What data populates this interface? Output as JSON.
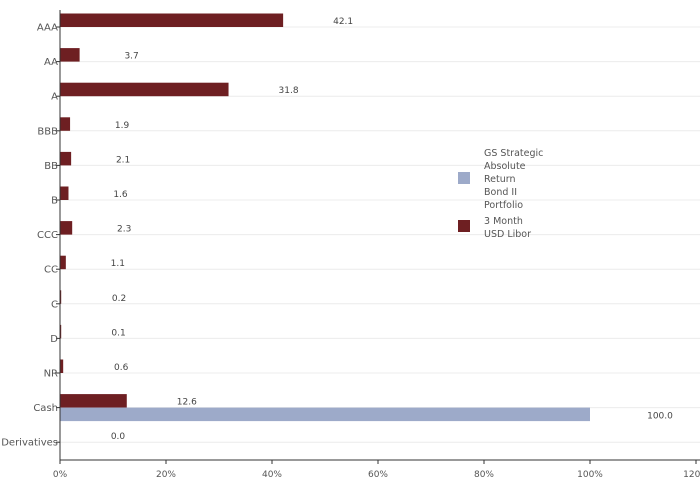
{
  "chart_data": {
    "type": "bar",
    "orientation": "horizontal",
    "categories": [
      "AAA",
      "AA",
      "A",
      "BBB",
      "BB",
      "B",
      "CCC",
      "CC",
      "C",
      "D",
      "NR",
      "Cash",
      "Derivatives"
    ],
    "series": [
      {
        "name": "GS Strategic Absolute Return Bond II Portfolio",
        "legend_lines": [
          "GS Strategic",
          "Absolute",
          "Return",
          "Bond II",
          "Portfolio"
        ],
        "color": "#9daac9",
        "values": [
          null,
          null,
          null,
          null,
          null,
          null,
          null,
          null,
          null,
          null,
          null,
          100.0,
          null
        ],
        "labels": [
          "",
          "",
          "",
          "",
          "",
          "",
          "",
          "",
          "",
          "",
          "",
          "100.0",
          ""
        ]
      },
      {
        "name": "3 Month USD Libor",
        "legend_lines": [
          "3 Month",
          "USD Libor"
        ],
        "color": "#6e1f22",
        "values": [
          42.1,
          3.7,
          31.8,
          1.9,
          2.1,
          1.6,
          2.3,
          1.1,
          0.2,
          0.1,
          0.6,
          12.6,
          0.0
        ],
        "labels": [
          "42.1",
          "3.7",
          "31.8",
          "1.9",
          "2.1",
          "1.6",
          "2.3",
          "1.1",
          "0.2",
          "0.1",
          "0.6",
          "12.6",
          "0.0"
        ]
      }
    ],
    "x_ticks": [
      0,
      20,
      40,
      60,
      80,
      100,
      120
    ],
    "x_tick_labels": [
      "0%",
      "20%",
      "40%",
      "60%",
      "80%",
      "100%",
      "120%"
    ],
    "xlim": [
      0,
      120
    ],
    "grid": "horizontal",
    "legend_position": "right"
  }
}
